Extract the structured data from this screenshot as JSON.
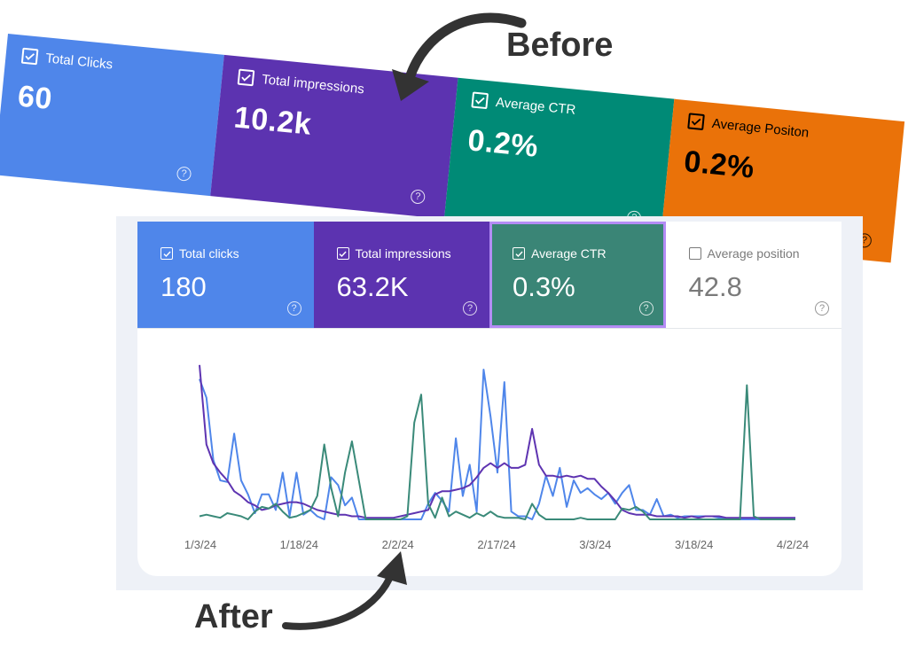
{
  "annotations": {
    "before_label": "Before",
    "after_label": "After"
  },
  "before_metrics": [
    {
      "label": "Total Clicks",
      "value": "60",
      "bg": "#4f86ea",
      "fg": "#ffffff",
      "checked": true,
      "width": 245
    },
    {
      "label": "Total impressions",
      "value": "10.2k",
      "bg": "#5c33b0",
      "fg": "#ffffff",
      "checked": true,
      "width": 265
    },
    {
      "label": "Average CTR",
      "value": "0.2%",
      "bg": "#008a76",
      "fg": "#ffffff",
      "checked": true,
      "width": 245
    },
    {
      "label": "Average Positon",
      "value": "0.2%",
      "bg": "#ea7209",
      "fg": "#000000",
      "checked": true,
      "width": 261
    }
  ],
  "after_metrics": [
    {
      "label": "Total clicks",
      "value": "180",
      "bg": "#4f86ea",
      "fg": "#ffffff",
      "checked": true
    },
    {
      "label": "Total impressions",
      "value": "63.2K",
      "bg": "#5c33b0",
      "fg": "#ffffff",
      "checked": true
    },
    {
      "label": "Average CTR",
      "value": "0.3%",
      "bg": "#3a8576",
      "fg": "#ffffff",
      "checked": true,
      "highlighted": true
    },
    {
      "label": "Average position",
      "value": "42.8",
      "bg": "#ffffff",
      "fg": "#7a7a7a",
      "checked": false
    }
  ],
  "help_glyph": "?",
  "chart_data": {
    "type": "line",
    "x_tick_labels": [
      "1/3/24",
      "1/18/24",
      "2/2/24",
      "2/17/24",
      "3/3/24",
      "3/18/24",
      "4/2/24"
    ],
    "y_scale": [
      0,
      100
    ],
    "series": [
      {
        "color": "#4f86ea",
        "values": [
          90,
          78,
          38,
          25,
          24,
          55,
          25,
          16,
          4,
          16,
          16,
          6,
          30,
          2,
          30,
          3,
          6,
          2,
          0,
          27,
          22,
          9,
          14,
          0,
          0,
          0,
          0,
          0,
          0,
          0,
          0,
          0,
          0,
          10,
          17,
          12,
          5,
          52,
          15,
          35,
          5,
          96,
          66,
          30,
          88,
          5,
          2,
          2,
          0,
          10,
          28,
          15,
          33,
          8,
          25,
          17,
          20,
          16,
          13,
          17,
          10,
          17,
          22,
          6,
          6,
          3,
          13,
          2,
          3,
          1,
          2,
          2,
          2,
          2,
          2,
          1,
          0,
          0,
          0,
          0,
          0,
          0,
          0,
          0,
          0,
          0,
          0
        ]
      },
      {
        "color": "#5e34b1",
        "values": [
          99,
          48,
          36,
          30,
          25,
          18,
          15,
          11,
          9,
          6,
          7,
          9,
          10,
          11,
          11,
          10,
          8,
          6,
          5,
          4,
          3,
          3,
          2,
          2,
          1,
          1,
          1,
          1,
          1,
          2,
          3,
          4,
          5,
          6,
          16,
          18,
          18,
          19,
          20,
          22,
          27,
          33,
          36,
          33,
          36,
          33,
          33,
          35,
          58,
          35,
          28,
          28,
          27,
          28,
          27,
          28,
          26,
          26,
          21,
          17,
          12,
          6,
          4,
          3,
          3,
          3,
          2,
          2,
          2,
          2,
          1,
          2,
          1,
          2,
          2,
          2,
          1,
          1,
          1,
          1,
          1,
          1,
          1,
          1,
          1,
          1,
          1
        ]
      },
      {
        "color": "#3a8a79",
        "values": [
          2,
          3,
          2,
          1,
          4,
          3,
          2,
          0,
          5,
          8,
          7,
          10,
          5,
          1,
          2,
          4,
          6,
          15,
          48,
          20,
          2,
          30,
          50,
          25,
          0,
          0,
          0,
          0,
          0,
          0,
          2,
          62,
          80,
          10,
          1,
          14,
          2,
          5,
          3,
          1,
          4,
          2,
          5,
          2,
          1,
          1,
          1,
          0,
          10,
          3,
          0,
          0,
          0,
          0,
          0,
          1,
          0,
          0,
          0,
          0,
          0,
          7,
          6,
          8,
          5,
          0,
          0,
          0,
          0,
          0,
          0,
          0,
          0,
          0,
          0,
          0,
          0,
          0,
          0,
          86,
          2,
          0,
          0,
          0,
          0,
          0,
          0
        ]
      }
    ]
  }
}
